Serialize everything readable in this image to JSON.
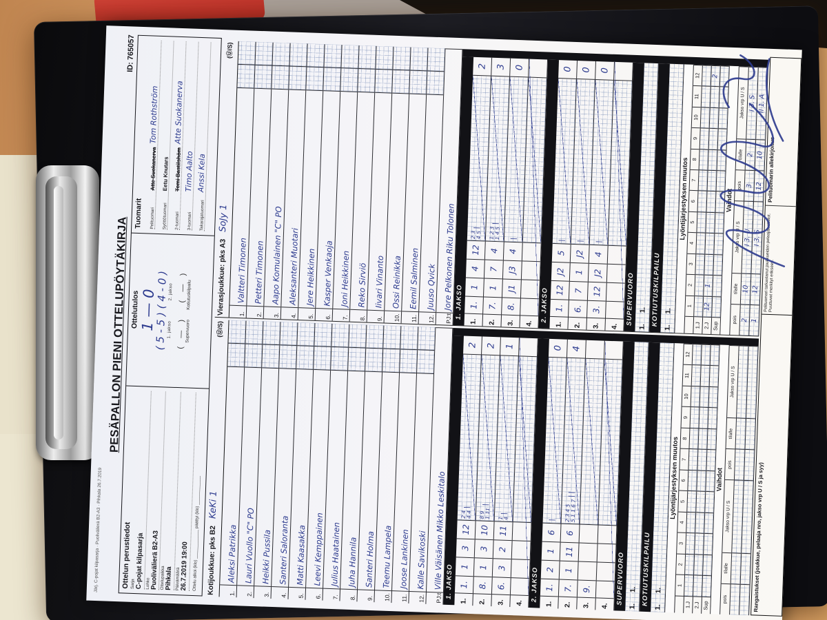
{
  "scene": {
    "table_color": "#d29a63",
    "clipboard_color": "#121216",
    "paper_color": "#f4f4f8",
    "ink_color": "#2c3a8e"
  },
  "header": {
    "meta_line": "Järj. C-pojat kilpasarja · Puolivälierä B2-A3 · Pihkala 26.7.2019",
    "title": "PESÄPALLON PIENI OTTELUPÖYTÄKIRJA",
    "form_id": "ID: 765057"
  },
  "perustiedot": {
    "title": "Ottelun perustiedot",
    "fields": [
      {
        "label": "Sarja",
        "value": "C-pojat kilpasarja"
      },
      {
        "label": "Lohko",
        "value": "Puolivälierä B2-A3"
      },
      {
        "label": "Ottelupaikka",
        "value": "Pihkala"
      },
      {
        "label": "Päivämäärä",
        "value": "26.7.2019 19:00"
      }
    ],
    "alkoi_line": "Ottelu alkoi (klo) ____________   päättyi (klo) ____________"
  },
  "ottelutulos": {
    "title": "Ottelutulos",
    "total": "1 — 0",
    "periods": "( 5 - 5 )   ( 4 - 0 )",
    "period_labels": "1. jakso             2. jakso",
    "extra_values": "(    —    )        (    —    )",
    "extra_labels": "Supervuoro        Kotiutuskilpailu"
  },
  "tuomarit": {
    "title": "Tuomarit",
    "rows": [
      {
        "label": "Pelituomari",
        "printed": "Atte Suokanerva",
        "struck": true,
        "written": "Tom Rothström"
      },
      {
        "label": "Syöttötuomari",
        "printed": "Eetu Knutars",
        "struck": false,
        "written": ""
      },
      {
        "label": "2-tuomari",
        "printed": "Tomi Bastilshöm",
        "struck": true,
        "written": "Atte Suokanerva"
      },
      {
        "label": "3-tuomari",
        "printed": "",
        "struck": false,
        "written": "Timo Aalto"
      },
      {
        "label": "Takarajatuomari",
        "printed": "",
        "struck": false,
        "written": "Anssi Kela"
      }
    ]
  },
  "teams": {
    "home": {
      "header": "Kotijoukkue: pks B2",
      "team_name": "KeKi 1",
      "us_label": "(Ⓤ/S)",
      "pjt_label": "PJ:t",
      "players": [
        "Aleksi Patrikka",
        "Lauri Vuollo \"C\" PO",
        "Heikki Pussila",
        "Santeri Saloranta",
        "Matti Kaasakka",
        "Leevi Kemppainen",
        "Julius Haatainen",
        "Juha Hannila",
        "Santeri Holma",
        "Teemu Lampela",
        "Joose Lankinen",
        "Kalle Savikoski"
      ],
      "pjt": "Ville Väisänen      Mikko Leskitalo",
      "jakso1": {
        "title": "1. JAKSO",
        "rows": [
          {
            "n": "1.",
            "leader": "1.",
            "marks": [
              "1",
              "3",
              "12"
            ],
            "small_top": "2 4",
            "small_bottom": "4 4",
            "ticks": "|",
            "total": "2",
            "diag": true
          },
          {
            "n": "2.",
            "leader": "8.",
            "marks": [
              "1",
              "3",
              "10"
            ],
            "small_top": "8 9",
            "small_bottom": "1 11",
            "ticks": "|",
            "total": "2",
            "diag": true
          },
          {
            "n": "3.",
            "leader": "6.",
            "marks": [
              "3",
              "2",
              "11"
            ],
            "small_top": "1",
            "small_bottom": "4",
            "ticks": "|",
            "total": "1",
            "diag": true
          },
          {
            "n": "4.",
            "leader": "",
            "marks": [],
            "small_top": "",
            "small_bottom": "",
            "ticks": "",
            "total": "",
            "diag": true
          }
        ]
      },
      "jakso2": {
        "title": "2. JAKSO",
        "rows": [
          {
            "n": "1.",
            "leader": "1.",
            "marks": [
              "2",
              "1",
              "6"
            ],
            "small_top": "",
            "small_bottom": "",
            "ticks": "|",
            "total": "0",
            "diag": true
          },
          {
            "n": "2.",
            "leader": "7.",
            "marks": [
              "1",
              "11",
              "6"
            ],
            "small_top": "2 3 4 5",
            "small_bottom": "5 1 1 6 7",
            "ticks": "| |",
            "total": "4",
            "diag": true
          },
          {
            "n": "3.",
            "leader": "9.",
            "marks": [],
            "small_top": "",
            "small_bottom": "",
            "ticks": "",
            "total": "",
            "diag": true
          },
          {
            "n": "4.",
            "leader": "",
            "marks": [],
            "small_top": "",
            "small_bottom": "",
            "ticks": "",
            "total": "",
            "diag": true
          }
        ]
      },
      "supervuoro": {
        "title": "SUPERVUORO",
        "cells": [
          "1.",
          "1."
        ]
      },
      "kotiutus": {
        "title": "KOTIUTUSKILPAILU",
        "cells": [
          "1.",
          "1."
        ]
      },
      "lyonti": {
        "title": "Lyöntijärjestyksen muutos",
        "cols": [
          "1",
          "2",
          "3",
          "4",
          "5",
          "6",
          "7",
          "8",
          "9",
          "10",
          "11",
          "12"
        ],
        "rows": [
          {
            "label": "1.J",
            "cells": {}
          },
          {
            "label": "2.J",
            "cells": {}
          },
          {
            "label": "Sup",
            "cells": {}
          }
        ]
      },
      "vaihdot": {
        "title": "Vaihdot",
        "headers": [
          "pois",
          "tilalle",
          "Jakso vrp U / S",
          "pois",
          "tilalle",
          "Jakso vrp U / S"
        ],
        "rows": [
          {
            "c": [
              "",
              "",
              "",
              "",
              "",
              ""
            ]
          },
          {
            "c": [
              "",
              "",
              "",
              "",
              "",
              ""
            ]
          }
        ]
      }
    },
    "away": {
      "header": "Vierasjoukkue: pks A3",
      "team_name": "SoJy 1",
      "us_label": "(Ⓤ/S)",
      "pjt_label": "PJ:t",
      "players": [
        "Valtteri Timonen",
        "Petteri Timonen",
        "Aapo Komulainen \"C\" PO",
        "Aleksanteri Muotari",
        "Jere Heikkinen",
        "Kasper Venkaoja",
        "Joni Heikkinen",
        "Reko Sirviö",
        "Iivari Vinanto",
        "Ossi Reinikka",
        "Eemil Salminen",
        "Juuso Qvick"
      ],
      "pjt": "Jore Pelkonen     Riku Tolonen",
      "jakso1": {
        "title": "1. JAKSO",
        "rows": [
          {
            "n": "1.",
            "leader": "1.",
            "marks": [
              "1",
              "4",
              "12"
            ],
            "small_top": "2 3",
            "small_bottom": "4 5",
            "ticks": "|",
            "total": "2",
            "diag": true
          },
          {
            "n": "2.",
            "leader": "7.",
            "marks": [
              "1",
              "7",
              "4"
            ],
            "small_top": "1 2 3",
            "small_bottom": "1 4 5",
            "ticks": "|",
            "total": "3",
            "diag": true
          },
          {
            "n": "3.",
            "leader": "8.",
            "marks": [
              "J1",
              "J3",
              "4"
            ],
            "small_top": "",
            "small_bottom": "",
            "ticks": "|",
            "total": "0",
            "diag": true
          },
          {
            "n": "4.",
            "leader": "",
            "marks": [],
            "small_top": "",
            "small_bottom": "",
            "ticks": "",
            "total": "",
            "diag": true
          }
        ]
      },
      "jakso2": {
        "title": "2. JAKSO",
        "rows": [
          {
            "n": "1.",
            "leader": "1.",
            "marks": [
              "12",
              "J2",
              "5"
            ],
            "small_top": "",
            "small_bottom": "",
            "ticks": "|",
            "total": "0",
            "diag": true
          },
          {
            "n": "2.",
            "leader": "6.",
            "marks": [
              "7",
              "1",
              "J2"
            ],
            "small_top": "",
            "small_bottom": "",
            "ticks": "|",
            "total": "0",
            "diag": true
          },
          {
            "n": "3.",
            "leader": "3.",
            "marks": [
              "12",
              "J2",
              "4"
            ],
            "small_top": "",
            "small_bottom": "",
            "ticks": "|",
            "total": "0",
            "diag": true
          },
          {
            "n": "4.",
            "leader": "",
            "marks": [],
            "small_top": "",
            "small_bottom": "",
            "ticks": "",
            "total": "",
            "diag": true
          }
        ]
      },
      "supervuoro": {
        "title": "SUPERVUORO",
        "cells": [
          "1.",
          "1."
        ]
      },
      "kotiutus": {
        "title": "KOTIUTUSKILPAILU",
        "cells": [
          "1.",
          "1."
        ]
      },
      "lyonti": {
        "title": "Lyöntijärjestyksen muutos",
        "cols": [
          "1",
          "2",
          "3",
          "4",
          "5",
          "6",
          "7",
          "8",
          "9",
          "10",
          "11",
          "12"
        ],
        "rows": [
          {
            "label": "1.J",
            "cells": {}
          },
          {
            "label": "2.J",
            "cells": {
              "1": "12",
              "2": "1",
              "12": "2"
            }
          },
          {
            "label": "Sup",
            "cells": {}
          }
        ]
      },
      "vaihdot": {
        "title": "Vaihdot",
        "headers": [
          "pois",
          "tilalle",
          "Jakso vrp U / S",
          "pois",
          "tilalle",
          "Jakso vrp U / S"
        ],
        "rows": [
          {
            "c": [
              "2",
              "10",
              "I 3. U",
              "3",
              "2",
              "I 3. S"
            ]
          },
          {
            "c": [
              "1",
              "12",
              "I 3. S",
              "12",
              "10",
              "II 1. A"
            ]
          }
        ]
      }
    }
  },
  "bottom": {
    "rangaistukset": "Rangaistukset (joukkue, pelaaja nro, jakso vrp U / S ja syy)",
    "note": "Pelituomari tarkastanut joukkueiden pelaajaluettelot. Puuttuvat merkityt erikseen.",
    "allekirjoitus": "Pelituomarin allekirjoitus"
  }
}
